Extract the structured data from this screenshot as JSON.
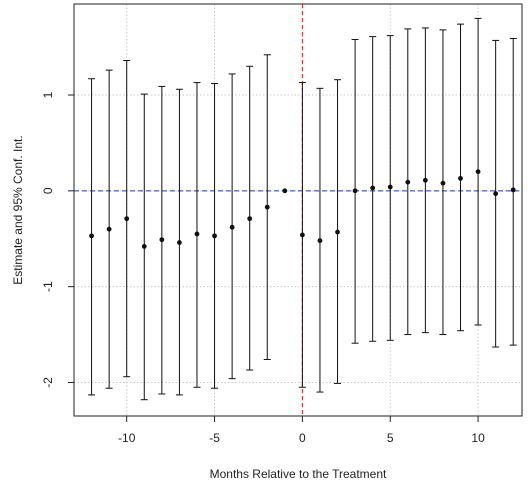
{
  "chart_data": {
    "type": "scatter",
    "xlabel": "Months Relative to the Treatment",
    "ylabel": "Estimate and 95% Conf. Int.",
    "xlim": [
      -13,
      12.5
    ],
    "ylim": [
      -2.35,
      1.95
    ],
    "x_ticks": [
      -10,
      -5,
      0,
      5,
      10
    ],
    "x_tick_labels": [
      "-10",
      "-5",
      "0",
      "5",
      "10"
    ],
    "y_ticks": [
      -2,
      -1,
      0,
      1
    ],
    "y_tick_labels": [
      "-2",
      "-1",
      "0",
      "1"
    ],
    "grid": true,
    "reference_lines": {
      "vertical_x": 0,
      "horizontal_y": 0,
      "vertical_color": "#dd2222",
      "horizontal_color": "#1f3fa6"
    },
    "colors": {
      "points": "#111111",
      "error_bars": "#111111",
      "grid": "#c9c9c9",
      "axes": "#222222"
    },
    "series": [
      {
        "points": [
          {
            "x": -12,
            "y": -0.47,
            "lo": -2.13,
            "hi": 1.17
          },
          {
            "x": -11,
            "y": -0.4,
            "lo": -2.06,
            "hi": 1.26
          },
          {
            "x": -10,
            "y": -0.29,
            "lo": -1.94,
            "hi": 1.36
          },
          {
            "x": -9,
            "y": -0.58,
            "lo": -2.18,
            "hi": 1.01
          },
          {
            "x": -8,
            "y": -0.51,
            "lo": -2.12,
            "hi": 1.09
          },
          {
            "x": -7,
            "y": -0.54,
            "lo": -2.13,
            "hi": 1.06
          },
          {
            "x": -6,
            "y": -0.45,
            "lo": -2.05,
            "hi": 1.13
          },
          {
            "x": -5,
            "y": -0.47,
            "lo": -2.06,
            "hi": 1.12
          },
          {
            "x": -4,
            "y": -0.38,
            "lo": -1.96,
            "hi": 1.22
          },
          {
            "x": -3,
            "y": -0.29,
            "lo": -1.87,
            "hi": 1.3
          },
          {
            "x": -2,
            "y": -0.17,
            "lo": -1.76,
            "hi": 1.42
          },
          {
            "x": -1,
            "y": 0.0,
            "lo": null,
            "hi": null
          },
          {
            "x": 0,
            "y": -0.46,
            "lo": -2.05,
            "hi": 1.13
          },
          {
            "x": 1,
            "y": -0.52,
            "lo": -2.1,
            "hi": 1.07
          },
          {
            "x": 2,
            "y": -0.43,
            "lo": -2.01,
            "hi": 1.16
          },
          {
            "x": 3,
            "y": 0.0,
            "lo": -1.59,
            "hi": 1.58
          },
          {
            "x": 4,
            "y": 0.03,
            "lo": -1.57,
            "hi": 1.61
          },
          {
            "x": 5,
            "y": 0.04,
            "lo": -1.56,
            "hi": 1.62
          },
          {
            "x": 6,
            "y": 0.09,
            "lo": -1.5,
            "hi": 1.69
          },
          {
            "x": 7,
            "y": 0.11,
            "lo": -1.48,
            "hi": 1.7
          },
          {
            "x": 8,
            "y": 0.08,
            "lo": -1.5,
            "hi": 1.68
          },
          {
            "x": 9,
            "y": 0.13,
            "lo": -1.46,
            "hi": 1.74
          },
          {
            "x": 10,
            "y": 0.2,
            "lo": -1.4,
            "hi": 1.8
          },
          {
            "x": 11,
            "y": -0.03,
            "lo": -1.63,
            "hi": 1.57
          },
          {
            "x": 12,
            "y": 0.01,
            "lo": -1.61,
            "hi": 1.59
          }
        ]
      }
    ]
  }
}
